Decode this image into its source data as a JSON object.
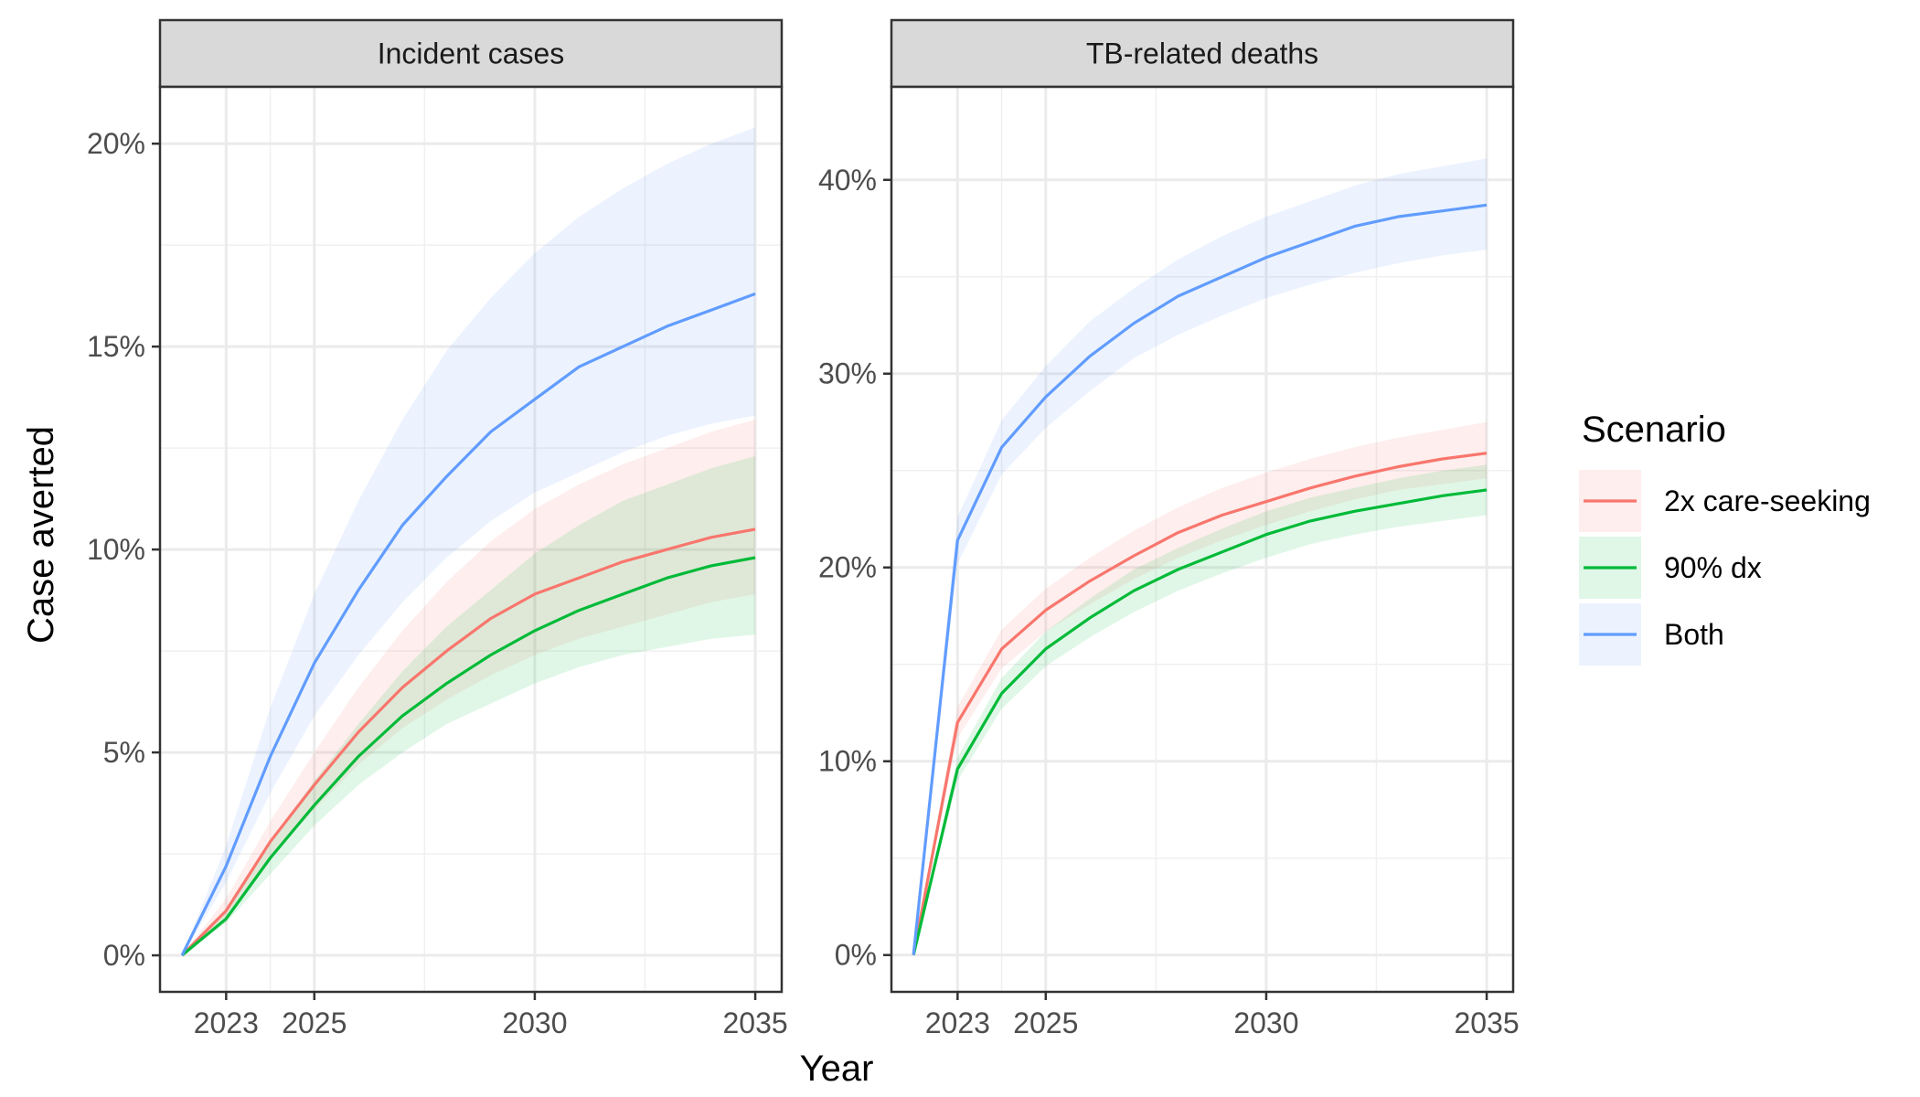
{
  "chart_data": {
    "type": "line",
    "xlabel": "Year",
    "ylabel": "Case averted",
    "x_ticks": [
      2023,
      2025,
      2030,
      2035
    ],
    "xlim": [
      2021.5,
      2035.6
    ],
    "grid": true,
    "legend": {
      "title": "Scenario",
      "position": "right",
      "entries": [
        "2x care-seeking",
        "90% dx",
        "Both"
      ]
    },
    "colors": {
      "2x care-seeking": "#F8766D",
      "90% dx": "#00BA38",
      "Both": "#619CFF"
    },
    "panels": [
      {
        "title": "Incident cases",
        "ylim": [
          -0.9,
          21.4
        ],
        "y_ticks": [
          0,
          5,
          10,
          15,
          20
        ],
        "y_tick_labels": [
          "0%",
          "5%",
          "10%",
          "15%",
          "20%"
        ],
        "x": [
          2022,
          2023,
          2024,
          2025,
          2026,
          2027,
          2028,
          2029,
          2030,
          2031,
          2032,
          2033,
          2034,
          2035
        ],
        "series": [
          {
            "name": "2x care-seeking",
            "values": [
              0,
              1.1,
              2.8,
              4.2,
              5.5,
              6.6,
              7.5,
              8.3,
              8.9,
              9.3,
              9.7,
              10.0,
              10.3,
              10.5
            ],
            "lower": [
              0,
              0.9,
              2.4,
              3.6,
              4.7,
              5.6,
              6.3,
              6.9,
              7.4,
              7.8,
              8.1,
              8.4,
              8.7,
              8.9
            ],
            "upper": [
              0,
              1.4,
              3.3,
              5.0,
              6.6,
              8.0,
              9.2,
              10.2,
              11.0,
              11.6,
              12.1,
              12.5,
              12.9,
              13.2
            ]
          },
          {
            "name": "90% dx",
            "values": [
              0,
              0.9,
              2.4,
              3.7,
              4.9,
              5.9,
              6.7,
              7.4,
              8.0,
              8.5,
              8.9,
              9.3,
              9.6,
              9.8
            ],
            "lower": [
              0,
              0.8,
              2.0,
              3.2,
              4.2,
              5.0,
              5.7,
              6.2,
              6.7,
              7.1,
              7.4,
              7.6,
              7.8,
              7.9
            ],
            "upper": [
              0,
              1.1,
              2.8,
              4.3,
              5.7,
              7.0,
              8.1,
              9.0,
              9.9,
              10.6,
              11.2,
              11.6,
              12.0,
              12.3
            ]
          },
          {
            "name": "Both",
            "values": [
              0,
              2.2,
              4.9,
              7.2,
              9.0,
              10.6,
              11.8,
              12.9,
              13.7,
              14.5,
              15.0,
              15.5,
              15.9,
              16.3
            ],
            "lower": [
              0,
              1.8,
              4.0,
              5.9,
              7.4,
              8.7,
              9.8,
              10.7,
              11.4,
              11.9,
              12.4,
              12.8,
              13.1,
              13.3
            ],
            "upper": [
              0,
              2.7,
              6.1,
              8.9,
              11.2,
              13.2,
              14.9,
              16.2,
              17.3,
              18.2,
              18.9,
              19.5,
              20.0,
              20.4
            ]
          }
        ]
      },
      {
        "title": "TB-related deaths",
        "ylim": [
          -1.9,
          44.8
        ],
        "y_ticks": [
          0,
          10,
          20,
          30,
          40
        ],
        "y_tick_labels": [
          "0%",
          "10%",
          "20%",
          "30%",
          "40%"
        ],
        "x": [
          2022,
          2023,
          2024,
          2025,
          2026,
          2027,
          2028,
          2029,
          2030,
          2031,
          2032,
          2033,
          2034,
          2035
        ],
        "series": [
          {
            "name": "2x care-seeking",
            "values": [
              0,
              12.0,
              15.8,
              17.8,
              19.3,
              20.6,
              21.8,
              22.7,
              23.4,
              24.1,
              24.7,
              25.2,
              25.6,
              25.9
            ],
            "lower": [
              0,
              11.2,
              14.8,
              16.7,
              18.1,
              19.4,
              20.5,
              21.4,
              22.2,
              22.9,
              23.5,
              24.0,
              24.3,
              24.6
            ],
            "upper": [
              0,
              12.8,
              16.8,
              18.9,
              20.5,
              21.9,
              23.1,
              24.1,
              24.9,
              25.6,
              26.2,
              26.7,
              27.1,
              27.5
            ]
          },
          {
            "name": "90% dx",
            "values": [
              0,
              9.6,
              13.5,
              15.8,
              17.4,
              18.8,
              19.9,
              20.8,
              21.7,
              22.4,
              22.9,
              23.3,
              23.7,
              24.0
            ],
            "lower": [
              0,
              9.0,
              12.7,
              14.9,
              16.4,
              17.7,
              18.8,
              19.7,
              20.5,
              21.2,
              21.7,
              22.1,
              22.4,
              22.7
            ],
            "upper": [
              0,
              10.2,
              14.3,
              16.7,
              18.4,
              19.9,
              21.0,
              22.0,
              22.9,
              23.6,
              24.1,
              24.6,
              25.0,
              25.3
            ]
          },
          {
            "name": "Both",
            "values": [
              0,
              21.4,
              26.2,
              28.8,
              30.9,
              32.6,
              34.0,
              35.0,
              36.0,
              36.8,
              37.6,
              38.1,
              38.4,
              38.7
            ],
            "lower": [
              0,
              20.2,
              24.8,
              27.2,
              29.1,
              30.8,
              32.0,
              33.0,
              33.9,
              34.6,
              35.2,
              35.7,
              36.1,
              36.4
            ],
            "upper": [
              0,
              22.6,
              27.6,
              30.4,
              32.7,
              34.4,
              35.9,
              37.1,
              38.1,
              38.9,
              39.7,
              40.3,
              40.7,
              41.1
            ]
          }
        ]
      }
    ]
  }
}
